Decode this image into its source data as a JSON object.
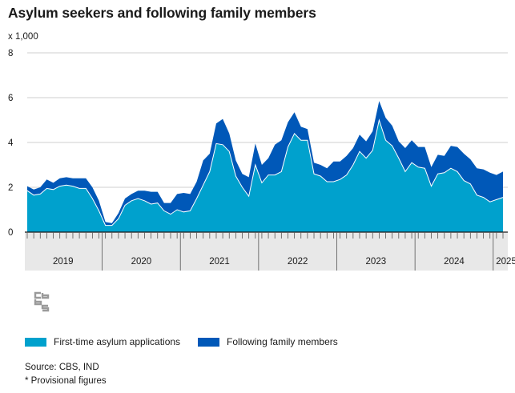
{
  "title": "Asylum seekers and following family members",
  "unit_label": "x 1,000",
  "chart_data": {
    "type": "area",
    "stacked": true,
    "ylim": [
      0,
      8
    ],
    "y_ticks": [
      "0",
      "2",
      "4",
      "6",
      "8"
    ],
    "x_labels": [
      "2019",
      "2020",
      "2021",
      "2022",
      "2023",
      "2024",
      "2025"
    ],
    "months_per_year": [
      12,
      12,
      12,
      12,
      12,
      12,
      4
    ],
    "grid": true,
    "legend_position": "bottom",
    "series": [
      {
        "name": "First-time asylum applications",
        "color": "#00a1cd",
        "values": [
          1.85,
          1.65,
          1.7,
          1.95,
          1.9,
          2.05,
          2.1,
          2.05,
          1.95,
          1.95,
          1.5,
          0.95,
          0.3,
          0.3,
          0.6,
          1.2,
          1.4,
          1.5,
          1.4,
          1.25,
          1.3,
          0.95,
          0.8,
          1.0,
          0.9,
          0.95,
          1.5,
          2.1,
          2.7,
          3.95,
          3.9,
          3.6,
          2.5,
          2.0,
          1.6,
          3.0,
          2.2,
          2.55,
          2.55,
          2.7,
          3.8,
          4.4,
          4.1,
          4.1,
          2.6,
          2.5,
          2.25,
          2.25,
          2.35,
          2.55,
          3.0,
          3.6,
          3.3,
          3.65,
          5.0,
          4.1,
          3.85,
          3.3,
          2.7,
          3.1,
          2.9,
          2.85,
          2.05,
          2.6,
          2.65,
          2.85,
          2.7,
          2.3,
          2.15,
          1.65,
          1.55,
          1.35,
          1.45,
          1.55
        ]
      },
      {
        "name": "Following family members",
        "color": "#0058b8",
        "values": [
          0.2,
          0.25,
          0.3,
          0.4,
          0.3,
          0.35,
          0.35,
          0.35,
          0.45,
          0.45,
          0.5,
          0.45,
          0.15,
          0.1,
          0.25,
          0.3,
          0.3,
          0.35,
          0.45,
          0.55,
          0.5,
          0.35,
          0.5,
          0.7,
          0.85,
          0.75,
          0.75,
          1.1,
          0.8,
          0.9,
          1.15,
          0.8,
          0.7,
          0.6,
          0.85,
          0.95,
          0.8,
          0.75,
          1.35,
          1.4,
          1.1,
          0.95,
          0.6,
          0.5,
          0.5,
          0.5,
          0.6,
          0.9,
          0.8,
          0.85,
          0.75,
          0.75,
          0.75,
          0.85,
          0.85,
          1.0,
          0.9,
          0.75,
          1.05,
          1.0,
          0.9,
          0.95,
          0.85,
          0.85,
          0.75,
          1.0,
          1.1,
          1.2,
          1.1,
          1.2,
          1.25,
          1.3,
          1.1,
          1.15
        ]
      }
    ]
  },
  "legend": [
    {
      "label": "First-time asylum applications",
      "color": "#00a1cd"
    },
    {
      "label": "Following family members",
      "color": "#0058b8"
    }
  ],
  "source": "Source: CBS, IND",
  "note": "* Provisional figures"
}
